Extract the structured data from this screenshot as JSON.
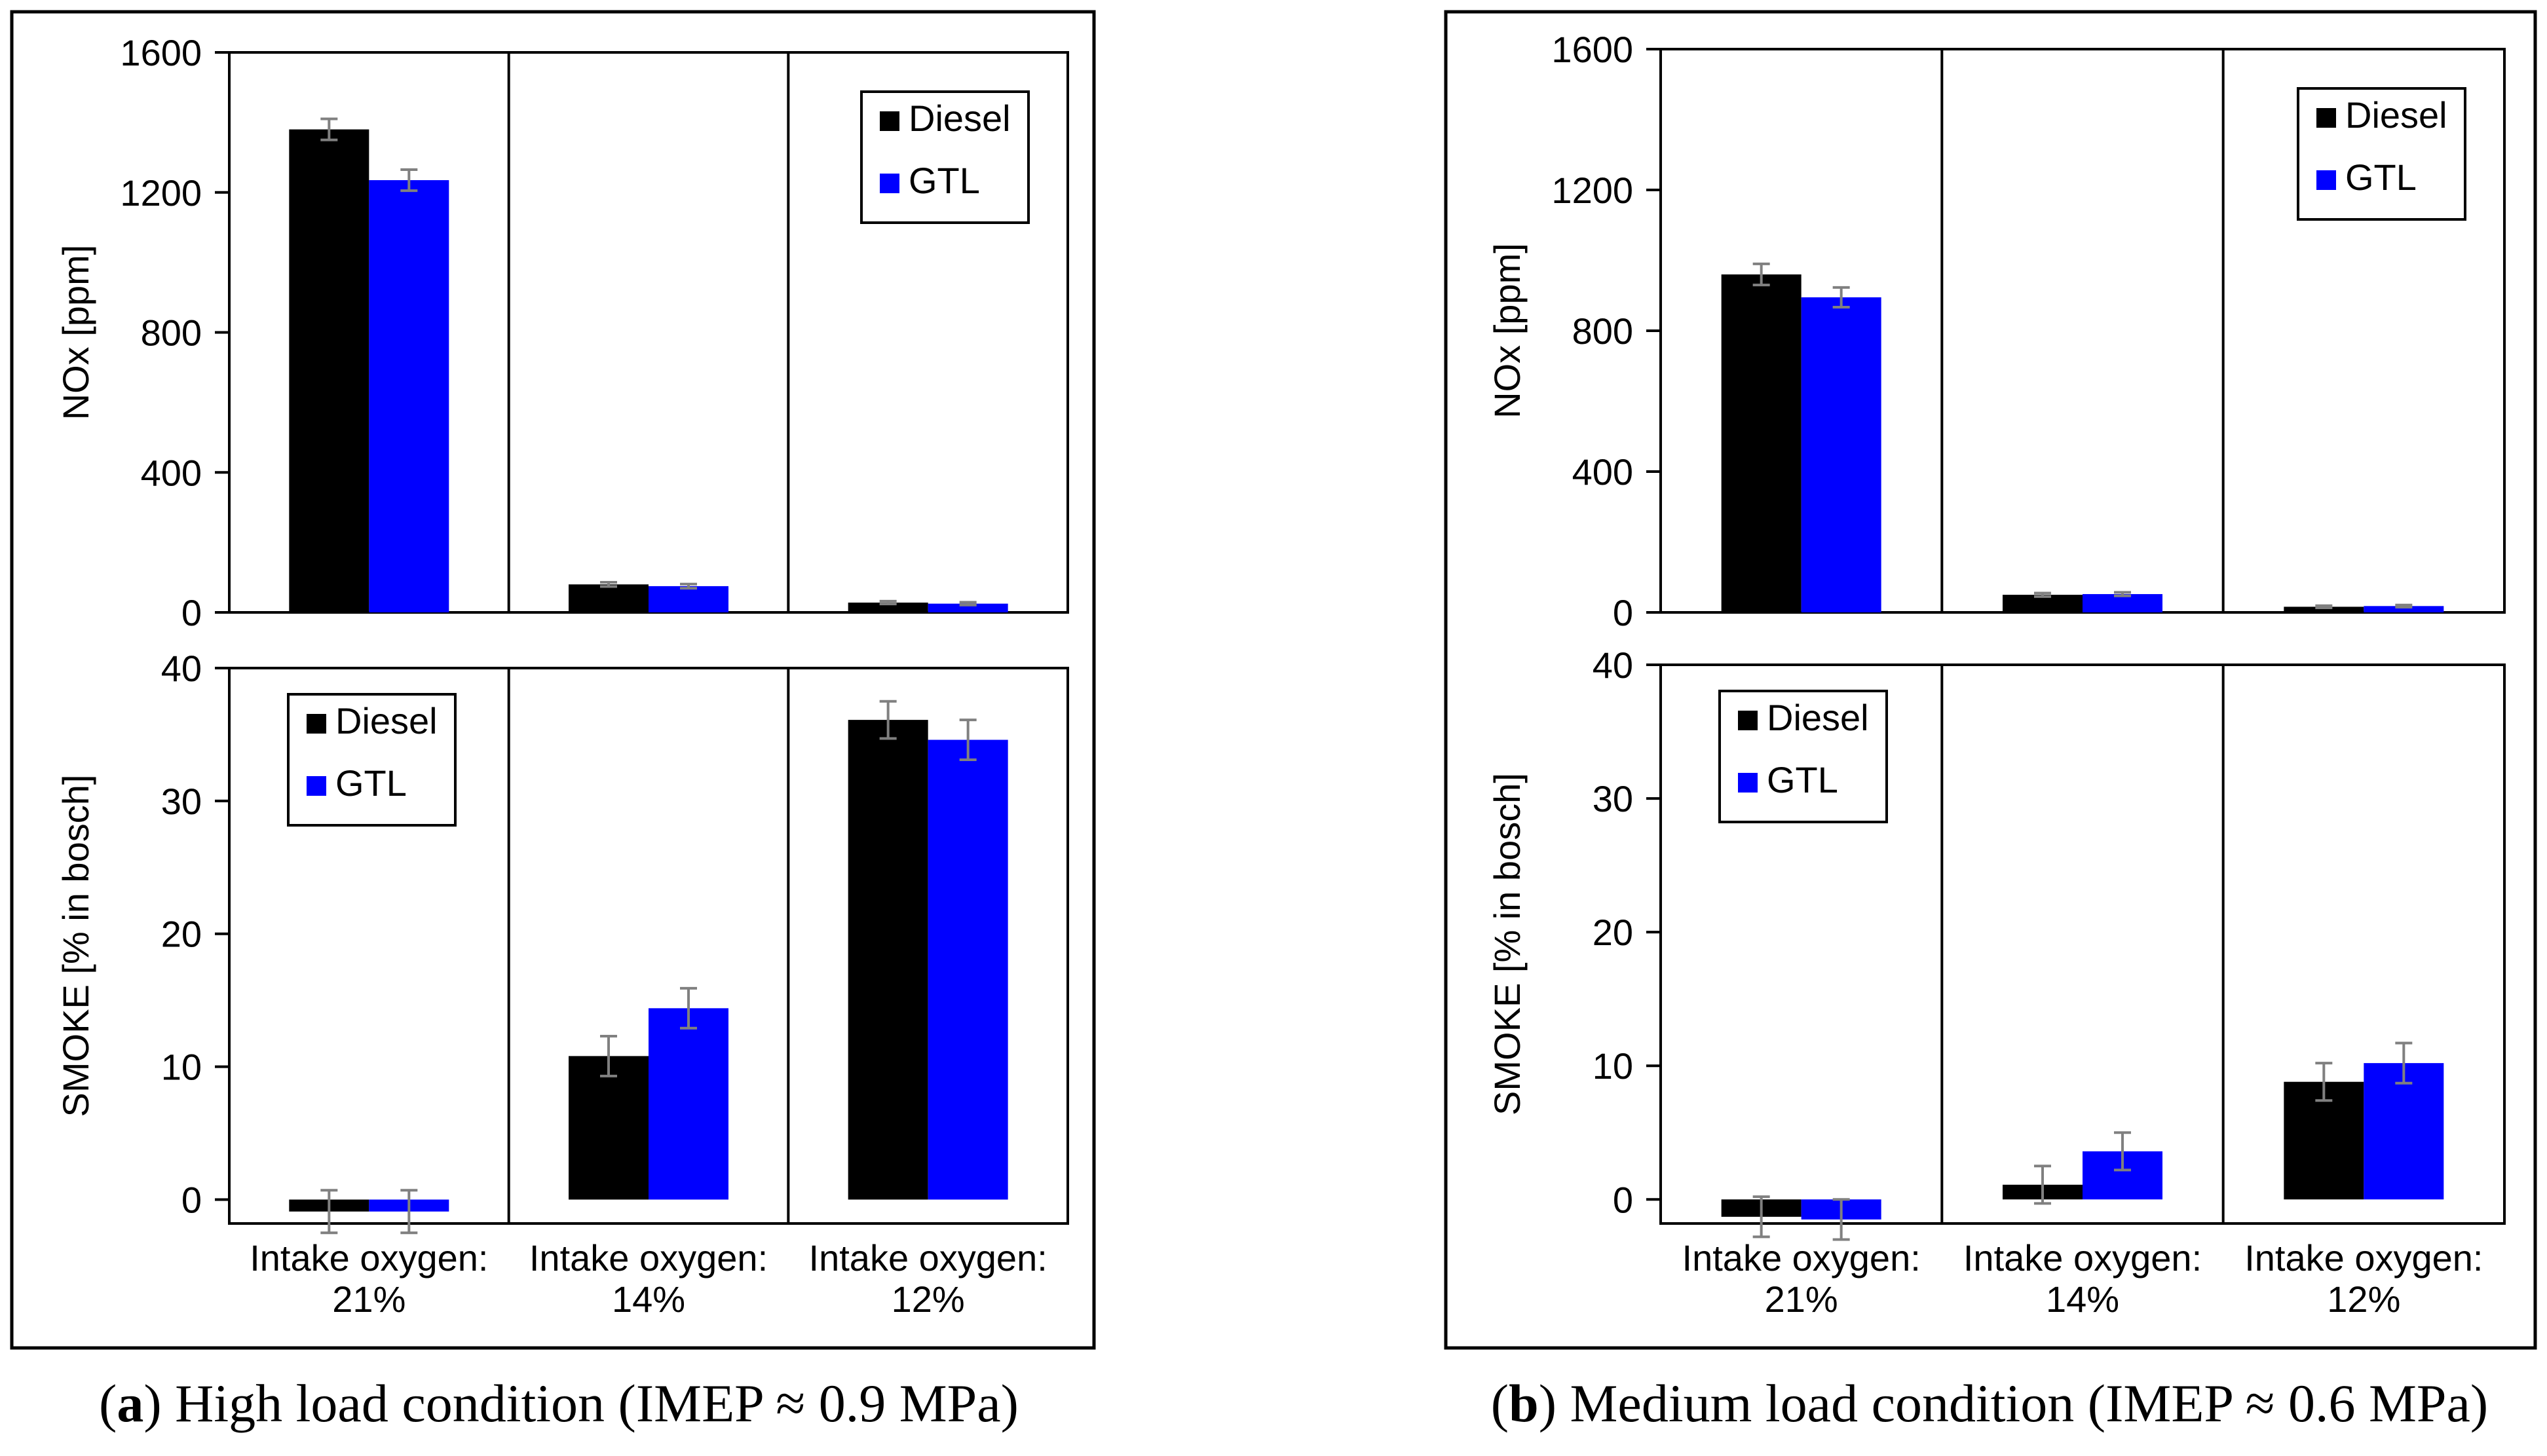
{
  "colors": {
    "diesel": "#000000",
    "gtl": "#0000FF",
    "error_bar": "#808080",
    "frame": "#000000",
    "text": "#000000"
  },
  "x_groups": [
    {
      "line1": "Intake oxygen:",
      "line2": "21%"
    },
    {
      "line1": "Intake oxygen:",
      "line2": "14%"
    },
    {
      "line1": "Intake oxygen:",
      "line2": "12%"
    }
  ],
  "legend": {
    "diesel": "Diesel",
    "gtl": "GTL"
  },
  "panels": [
    {
      "id": "a",
      "caption": {
        "letter": "a",
        "text": " High load condition (IMEP ≈ 0.9 MPa)"
      }
    },
    {
      "id": "b",
      "caption": {
        "letter": "b",
        "text": " Medium load condition (IMEP ≈ 0.6 MPa)"
      }
    }
  ],
  "chart_data": [
    {
      "panel": "a",
      "type": "bar",
      "title": "High load condition (IMEP ≈ 0.9 MPa)",
      "xlabel": "",
      "ylabel": "NOx [ppm]",
      "ylim": [
        0,
        1600
      ],
      "yticks": [
        "0",
        "400",
        "800",
        "1200",
        "1600"
      ],
      "categories": [
        "Intake oxygen: 21%",
        "Intake oxygen: 14%",
        "Intake oxygen: 12%"
      ],
      "legend_position": "top-right",
      "series": [
        {
          "name": "Diesel",
          "values": [
            1380,
            80,
            28
          ],
          "errors": [
            30,
            6,
            4
          ]
        },
        {
          "name": "GTL",
          "values": [
            1235,
            75,
            25
          ],
          "errors": [
            30,
            6,
            4
          ]
        }
      ]
    },
    {
      "panel": "a",
      "type": "bar",
      "xlabel": "",
      "ylabel": "SMOKE [% in bosch]",
      "ylim": [
        -1.8,
        40
      ],
      "yticks": [
        "0",
        "10",
        "20",
        "30",
        "40"
      ],
      "categories": [
        "Intake oxygen: 21%",
        "Intake oxygen: 14%",
        "Intake oxygen: 12%"
      ],
      "legend_position": "top-left",
      "series": [
        {
          "name": "Diesel",
          "values": [
            -0.9,
            10.8,
            36.1
          ],
          "errors": [
            1.6,
            1.5,
            1.4
          ]
        },
        {
          "name": "GTL",
          "values": [
            -0.9,
            14.4,
            34.6
          ],
          "errors": [
            1.6,
            1.5,
            1.5
          ]
        }
      ]
    },
    {
      "panel": "b",
      "type": "bar",
      "title": "Medium load condition (IMEP ≈ 0.6 MPa)",
      "xlabel": "",
      "ylabel": "NOx [ppm]",
      "ylim": [
        0,
        1600
      ],
      "yticks": [
        "0",
        "400",
        "800",
        "1200",
        "1600"
      ],
      "categories": [
        "Intake oxygen: 21%",
        "Intake oxygen: 14%",
        "Intake oxygen: 12%"
      ],
      "legend_position": "top-right",
      "series": [
        {
          "name": "Diesel",
          "values": [
            960,
            50,
            16
          ],
          "errors": [
            30,
            5,
            3
          ]
        },
        {
          "name": "GTL",
          "values": [
            895,
            52,
            18
          ],
          "errors": [
            28,
            5,
            3
          ]
        }
      ]
    },
    {
      "panel": "b",
      "type": "bar",
      "xlabel": "",
      "ylabel": "SMOKE [% in bosch]",
      "ylim": [
        -1.8,
        40
      ],
      "yticks": [
        "0",
        "10",
        "20",
        "30",
        "40"
      ],
      "categories": [
        "Intake oxygen: 21%",
        "Intake oxygen: 14%",
        "Intake oxygen: 12%"
      ],
      "legend_position": "top-left",
      "series": [
        {
          "name": "Diesel",
          "values": [
            -1.3,
            1.1,
            8.8
          ],
          "errors": [
            1.5,
            1.4,
            1.4
          ]
        },
        {
          "name": "GTL",
          "values": [
            -1.5,
            3.6,
            10.2
          ],
          "errors": [
            1.5,
            1.4,
            1.5
          ]
        }
      ]
    }
  ]
}
